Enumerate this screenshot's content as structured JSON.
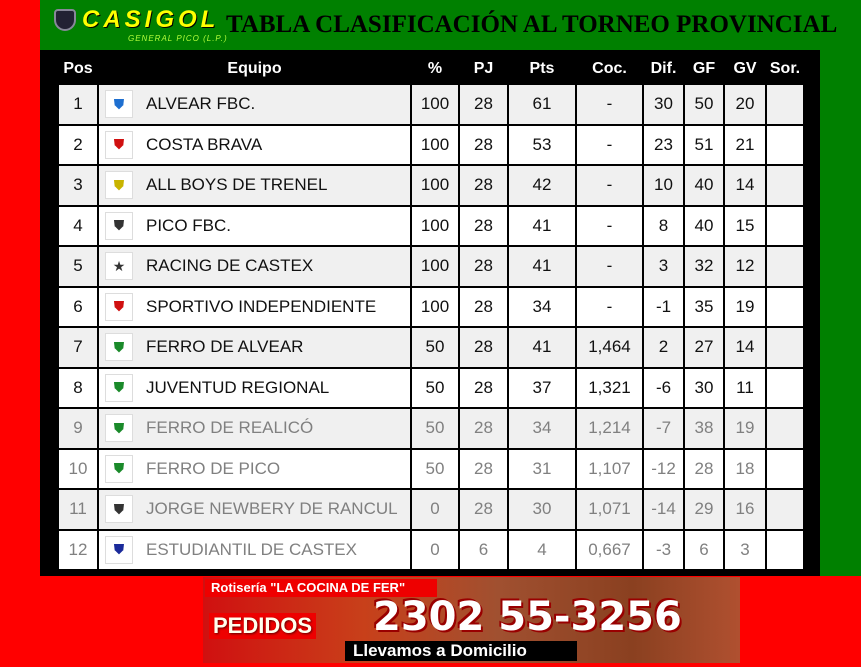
{
  "header": {
    "brand": "CASIGOL",
    "brand_sub": "GENERAL PICO (L.P.)",
    "title": "TABLA CLASIFICACIÓN AL TORNEO PROVINCIAL"
  },
  "columns": [
    "Pos",
    "Equipo",
    "%",
    "PJ",
    "Pts",
    "Coc.",
    "Dif.",
    "GF",
    "GV",
    "Sor."
  ],
  "rows": [
    {
      "pos": "1",
      "team": "ALVEAR FBC.",
      "pct": "100",
      "pj": "28",
      "pts": "61",
      "coc": "-",
      "dif": "30",
      "gf": "50",
      "gv": "20",
      "sor": "",
      "icon": "alvear-crest-icon",
      "color": "#1e6fd0"
    },
    {
      "pos": "2",
      "team": "COSTA BRAVA",
      "pct": "100",
      "pj": "28",
      "pts": "53",
      "coc": "-",
      "dif": "23",
      "gf": "51",
      "gv": "21",
      "sor": "",
      "icon": "costa-brava-crest-icon",
      "color": "#d01010"
    },
    {
      "pos": "3",
      "team": "ALL BOYS DE TRENEL",
      "pct": "100",
      "pj": "28",
      "pts": "42",
      "coc": "-",
      "dif": "10",
      "gf": "40",
      "gv": "14",
      "sor": "",
      "icon": "all-boys-crest-icon",
      "color": "#c8b400"
    },
    {
      "pos": "4",
      "team": "PICO FBC.",
      "pct": "100",
      "pj": "28",
      "pts": "41",
      "coc": "-",
      "dif": "8",
      "gf": "40",
      "gv": "15",
      "sor": "",
      "icon": "pico-crest-icon",
      "color": "#333333"
    },
    {
      "pos": "5",
      "team": "RACING DE CASTEX",
      "pct": "100",
      "pj": "28",
      "pts": "41",
      "coc": "-",
      "dif": "3",
      "gf": "32",
      "gv": "12",
      "sor": "",
      "icon": "racing-star-icon",
      "color": "#333333"
    },
    {
      "pos": "6",
      "team": "SPORTIVO INDEPENDIENTE",
      "pct": "100",
      "pj": "28",
      "pts": "34",
      "coc": "-",
      "dif": "-1",
      "gf": "35",
      "gv": "19",
      "sor": "",
      "icon": "independiente-crest-icon",
      "color": "#d01010"
    },
    {
      "pos": "7",
      "team": "FERRO DE ALVEAR",
      "pct": "50",
      "pj": "28",
      "pts": "41",
      "coc": "1,464",
      "dif": "2",
      "gf": "27",
      "gv": "14",
      "sor": "",
      "icon": "ferro-alvear-crest-icon",
      "color": "#1a8a2a"
    },
    {
      "pos": "8",
      "team": "JUVENTUD REGIONAL",
      "pct": "50",
      "pj": "28",
      "pts": "37",
      "coc": "1,321",
      "dif": "-6",
      "gf": "30",
      "gv": "11",
      "sor": "",
      "icon": "juventud-crest-icon",
      "color": "#1a8a2a"
    },
    {
      "pos": "9",
      "team": "FERRO DE REALICÓ",
      "pct": "50",
      "pj": "28",
      "pts": "34",
      "coc": "1,214",
      "dif": "-7",
      "gf": "38",
      "gv": "19",
      "sor": "",
      "icon": "ferro-realico-crest-icon",
      "color": "#1a8a2a"
    },
    {
      "pos": "10",
      "team": "FERRO DE PICO",
      "pct": "50",
      "pj": "28",
      "pts": "31",
      "coc": "1,107",
      "dif": "-12",
      "gf": "28",
      "gv": "18",
      "sor": "",
      "icon": "ferro-pico-crest-icon",
      "color": "#1a8a2a"
    },
    {
      "pos": "11",
      "team": "JORGE NEWBERY DE RANCUL",
      "pct": "0",
      "pj": "28",
      "pts": "30",
      "coc": "1,071",
      "dif": "-14",
      "gf": "29",
      "gv": "16",
      "sor": "",
      "icon": "newbery-crest-icon",
      "color": "#333333"
    },
    {
      "pos": "12",
      "team": "ESTUDIANTIL DE CASTEX",
      "pct": "0",
      "pj": "6",
      "pts": "4",
      "coc": "0,667",
      "dif": "-3",
      "gf": "6",
      "gv": "3",
      "sor": "",
      "icon": "estudiantil-crest-icon",
      "color": "#1a2a9a"
    }
  ],
  "ad": {
    "line1": "Rotisería \"LA COCINA DE FER\"",
    "pedidos": "PEDIDOS",
    "phone": "2302 55-3256",
    "delivery": "Llevamos a Domicilio"
  },
  "colors": {
    "background": "#ff0000",
    "panel": "#008000",
    "brand": "#ffff00",
    "muted_text": "#808080"
  }
}
